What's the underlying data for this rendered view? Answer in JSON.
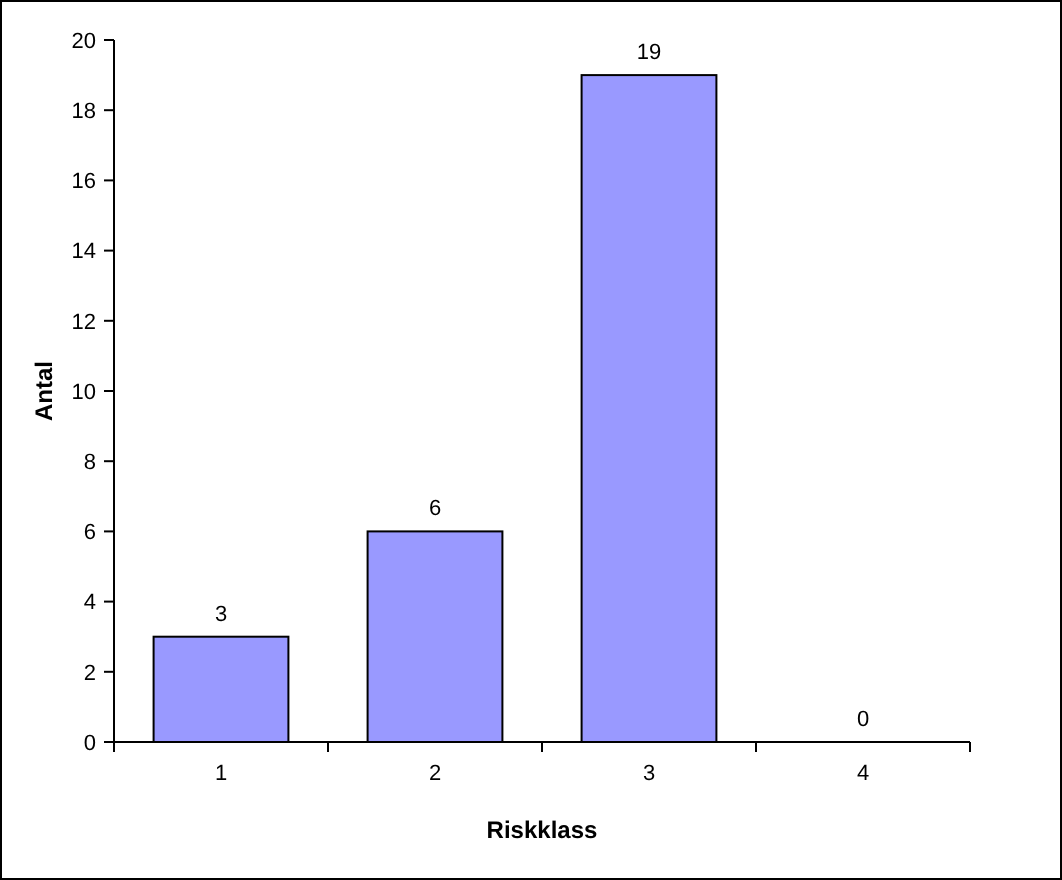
{
  "chart_data": {
    "type": "bar",
    "xlabel": "Riskklass",
    "ylabel": "Antal",
    "categories": [
      "1",
      "2",
      "3",
      "4"
    ],
    "values": [
      3,
      6,
      19,
      0
    ],
    "color": "#9999ff",
    "ylim": [
      0,
      20
    ],
    "yticks": [
      0,
      2,
      4,
      6,
      8,
      10,
      12,
      14,
      16,
      18,
      20
    ],
    "data_labels": true,
    "grid": false
  }
}
